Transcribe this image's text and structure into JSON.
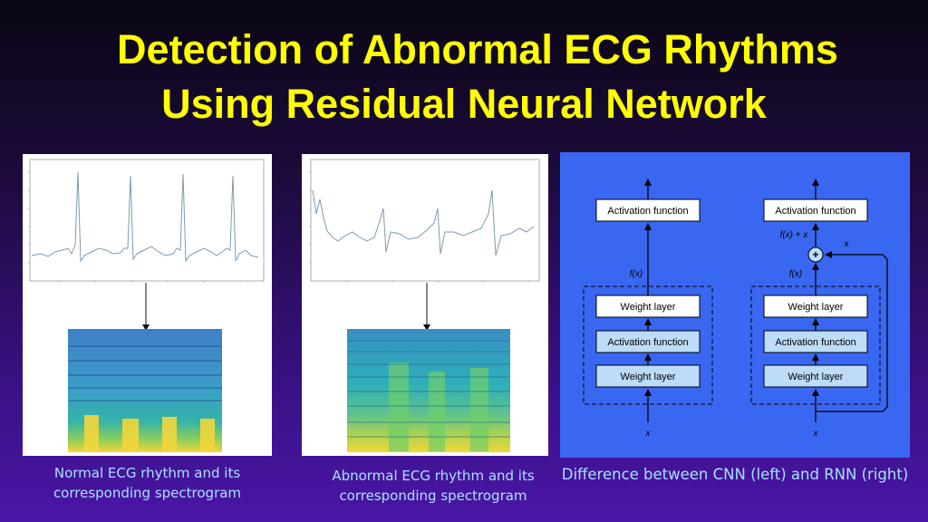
{
  "slide": {
    "title_line1": "Detection of Abnormal ECG Rhythms",
    "title_line2": "Using Residual Neural Network"
  },
  "captions": {
    "normal": "Normal ECG rhythm and its corresponding spectrogram",
    "abnormal": "Abnormal ECG rhythm and its corresponding spectrogram",
    "comparison": "Difference between CNN (left) and RNN (right)"
  },
  "diagram": {
    "activation_top": "Activation function",
    "weight_layer": "Weight layer",
    "activation_mid": "Activation function",
    "fx_label": "f(x)",
    "fx_plus_x_label": "f(x) + x",
    "x_label": "x",
    "plus_symbol": "+"
  },
  "colors": {
    "title": "#ffff00",
    "caption": "#a9e0ff",
    "diagram_background": "#3a67f2",
    "box_light": "#bcdcf8",
    "ecg_trace": "#7d9bb0"
  }
}
